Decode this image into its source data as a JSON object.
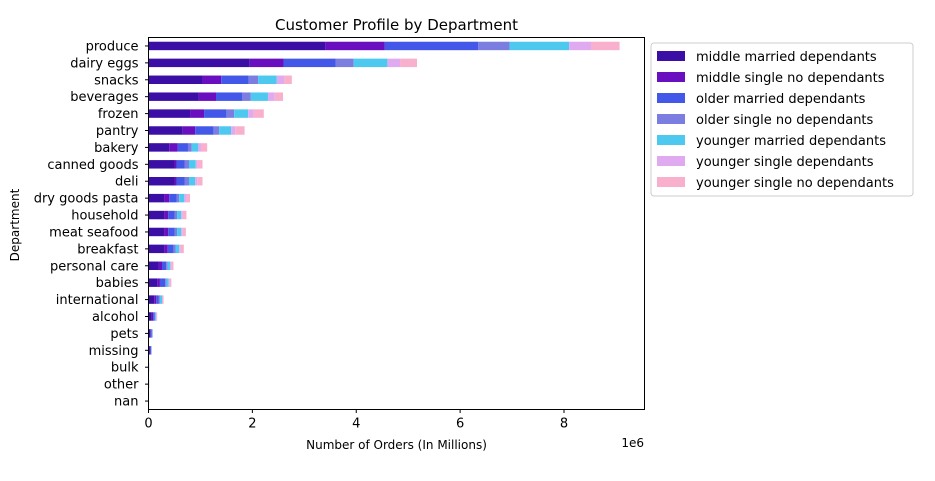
{
  "chart_data": {
    "type": "bar",
    "orientation": "horizontal",
    "stacked": true,
    "title": "Customer Profile by Department",
    "xlabel": "Number of Orders (In Millions)",
    "ylabel": "Department",
    "x_offset_label": "1e6",
    "xlim": [
      0,
      9.55
    ],
    "x_ticks": [
      0,
      2,
      4,
      6,
      8
    ],
    "x_tick_labels": [
      "0",
      "2",
      "4",
      "6",
      "8"
    ],
    "grid": false,
    "legend_position": "outside-right-top",
    "categories": [
      "produce",
      "dairy eggs",
      "snacks",
      "beverages",
      "frozen",
      "pantry",
      "bakery",
      "canned goods",
      "deli",
      "dry goods pasta",
      "household",
      "meat seafood",
      "breakfast",
      "personal care",
      "babies",
      "international",
      "alcohol",
      "pets",
      "missing",
      "bulk",
      "other",
      "nan"
    ],
    "series": [
      {
        "name": "middle married dependants",
        "color": "#3b0ea6",
        "values": [
          3.4,
          1.95,
          1.03,
          0.97,
          0.8,
          0.66,
          0.4,
          0.5,
          0.5,
          0.3,
          0.3,
          0.3,
          0.3,
          0.2,
          0.17,
          0.11,
          0.06,
          0.03,
          0.02,
          0.005,
          0.005,
          0.0
        ]
      },
      {
        "name": "middle single no dependants",
        "color": "#6a0fbf",
        "values": [
          1.15,
          0.65,
          0.37,
          0.33,
          0.27,
          0.24,
          0.16,
          0.04,
          0.04,
          0.1,
          0.08,
          0.08,
          0.07,
          0.06,
          0.05,
          0.04,
          0.03,
          0.01,
          0.01,
          0.002,
          0.002,
          0.0
        ]
      },
      {
        "name": "older married dependants",
        "color": "#4358e8",
        "values": [
          1.8,
          1.0,
          0.53,
          0.5,
          0.43,
          0.35,
          0.2,
          0.16,
          0.16,
          0.14,
          0.12,
          0.12,
          0.11,
          0.08,
          0.1,
          0.05,
          0.03,
          0.02,
          0.02,
          0.004,
          0.004,
          0.0
        ]
      },
      {
        "name": "older single no dependants",
        "color": "#7b7ee0",
        "values": [
          0.6,
          0.35,
          0.18,
          0.17,
          0.15,
          0.11,
          0.07,
          0.08,
          0.08,
          0.05,
          0.05,
          0.05,
          0.04,
          0.03,
          0.03,
          0.02,
          0.01,
          0.007,
          0.005,
          0.001,
          0.001,
          0.0
        ]
      },
      {
        "name": "younger married dependants",
        "color": "#4dc9f0",
        "values": [
          1.15,
          0.65,
          0.36,
          0.33,
          0.27,
          0.23,
          0.13,
          0.13,
          0.12,
          0.1,
          0.08,
          0.08,
          0.07,
          0.05,
          0.04,
          0.04,
          0.02,
          0.01,
          0.005,
          0.001,
          0.001,
          0.0
        ]
      },
      {
        "name": "younger single dependants",
        "color": "#e0aaf0",
        "values": [
          0.42,
          0.25,
          0.14,
          0.13,
          0.1,
          0.08,
          0.05,
          0.04,
          0.04,
          0.04,
          0.03,
          0.03,
          0.03,
          0.02,
          0.02,
          0.01,
          0.007,
          0.003,
          0.003,
          0.0,
          0.0,
          0.0
        ]
      },
      {
        "name": "younger single no dependants",
        "color": "#f9b0cc",
        "values": [
          0.55,
          0.32,
          0.15,
          0.16,
          0.2,
          0.18,
          0.12,
          0.09,
          0.1,
          0.07,
          0.07,
          0.06,
          0.06,
          0.04,
          0.03,
          0.02,
          0.01,
          0.005,
          0.003,
          0.001,
          0.001,
          0.0
        ]
      }
    ]
  }
}
